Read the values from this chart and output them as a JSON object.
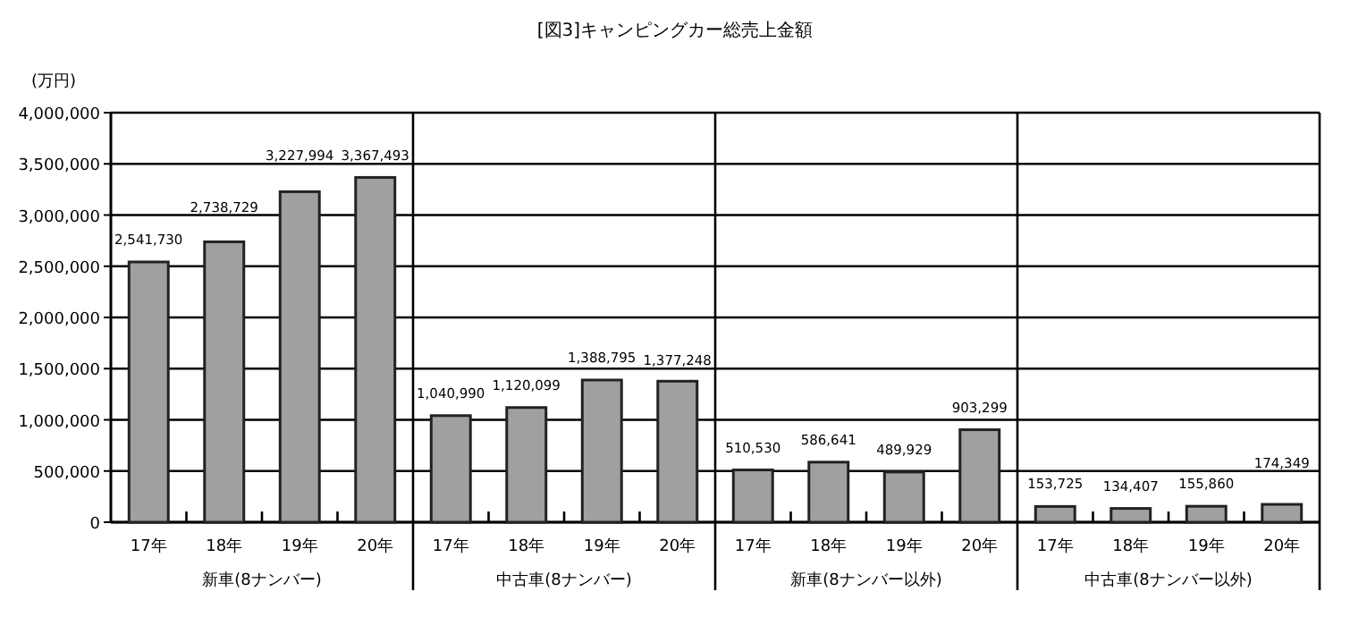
{
  "chart_data": {
    "type": "bar",
    "title": "[図3]キャンピングカー総売上金額",
    "ylabel": "(万円)",
    "categories": [
      "17年",
      "18年",
      "19年",
      "20年",
      "17年",
      "18年",
      "19年",
      "20年",
      "17年",
      "18年",
      "19年",
      "20年",
      "17年",
      "18年",
      "19年",
      "20年"
    ],
    "values": [
      2541730,
      2738729,
      3227994,
      3367493,
      1040990,
      1120099,
      1388795,
      1377248,
      510530,
      586641,
      489929,
      903299,
      153725,
      134407,
      155860,
      174349
    ],
    "color": "#a0a0a0",
    "annotations": [
      "新車(8ナンバー)",
      "中古車(8ナンバー)",
      "新車(8ナンバー以外)",
      "中古車(8ナンバー以外)"
    ],
    "ylim": [
      0,
      4000000
    ],
    "yticks": [
      {
        "value": 0,
        "label": "0"
      },
      {
        "value": 500000,
        "label": "500,000"
      },
      {
        "value": 1000000,
        "label": "1,000,000"
      },
      {
        "value": 1500000,
        "label": "1,500,000"
      },
      {
        "value": 2000000,
        "label": "2,000,000"
      },
      {
        "value": 2500000,
        "label": "2,500,000"
      },
      {
        "value": 3000000,
        "label": "3,000,000"
      },
      {
        "value": 3500000,
        "label": "3,500,000"
      },
      {
        "value": 4000000,
        "label": "4,000,000"
      }
    ],
    "value_labels": [
      "2,541,730",
      "2,738,729",
      "3,227,994",
      "3,367,493",
      "1,040,990",
      "1,120,099",
      "1,388,795",
      "1,377,248",
      "510,530",
      "586,641",
      "489,929",
      "903,299",
      "153,725",
      "134,407",
      "155,860",
      "174,349"
    ],
    "grid": "y"
  }
}
